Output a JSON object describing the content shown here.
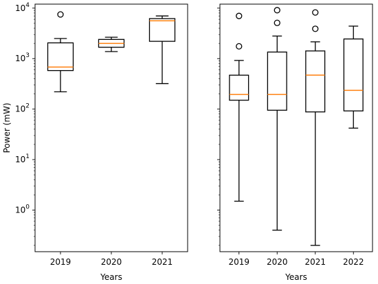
{
  "chart_data": [
    {
      "type": "box",
      "xlabel": "Years",
      "ylabel": "Power (mW)",
      "yscale": "log",
      "ylim": [
        0.15,
        12000
      ],
      "yticks": [
        {
          "value": 1,
          "base": "10",
          "exp": "0"
        },
        {
          "value": 10,
          "base": "10",
          "exp": "1"
        },
        {
          "value": 100,
          "base": "10",
          "exp": "2"
        },
        {
          "value": 1000,
          "base": "10",
          "exp": "3"
        },
        {
          "value": 10000,
          "base": "10",
          "exp": "4"
        }
      ],
      "categories": [
        "2019",
        "2020",
        "2021"
      ],
      "boxes": [
        {
          "label": "2019",
          "whislo": 220,
          "q1": 580,
          "med": 680,
          "q3": 2050,
          "whishi": 2500,
          "fliers": [
            7500
          ]
        },
        {
          "label": "2020",
          "whislo": 1380,
          "q1": 1680,
          "med": 2000,
          "q3": 2400,
          "whishi": 2650,
          "fliers": []
        },
        {
          "label": "2021",
          "whislo": 320,
          "q1": 2200,
          "med": 5600,
          "q3": 6200,
          "whishi": 7000,
          "fliers": []
        }
      ]
    },
    {
      "type": "box",
      "xlabel": "Years",
      "ylabel": "",
      "yscale": "log",
      "ylim": [
        0.15,
        12000
      ],
      "categories": [
        "2019",
        "2020",
        "2021",
        "2022"
      ],
      "boxes": [
        {
          "label": "2019",
          "whislo": 1.5,
          "q1": 150,
          "med": 195,
          "q3": 470,
          "whishi": 920,
          "fliers": [
            1750,
            7000
          ]
        },
        {
          "label": "2020",
          "whislo": 0.4,
          "q1": 95,
          "med": 195,
          "q3": 1350,
          "whishi": 2800,
          "fliers": [
            5100,
            9100
          ]
        },
        {
          "label": "2021",
          "whislo": 0.2,
          "q1": 88,
          "med": 470,
          "q3": 1420,
          "whishi": 2150,
          "fliers": [
            3900,
            8200
          ]
        },
        {
          "label": "2022",
          "whislo": 42,
          "q1": 92,
          "med": 235,
          "q3": 2450,
          "whishi": 4400,
          "fliers": []
        }
      ]
    }
  ],
  "colors": {
    "box": "#000000",
    "median": "#ff7f0e",
    "background": "#ffffff"
  }
}
